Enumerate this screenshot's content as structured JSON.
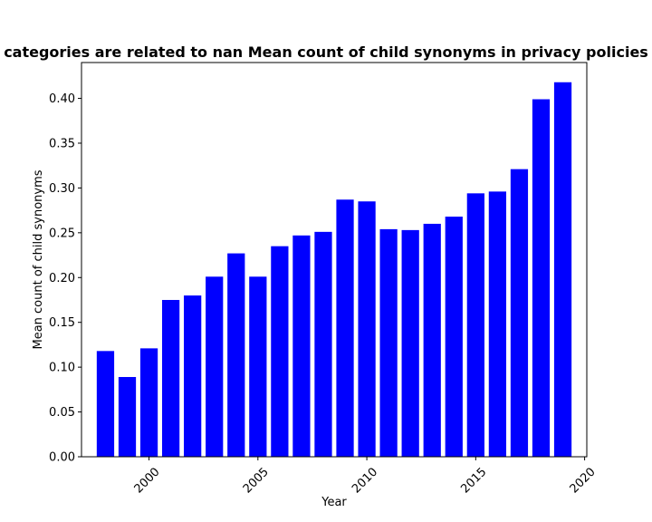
{
  "chart_data": {
    "type": "bar",
    "title": "categories are related to nan Mean count of child synonyms in privacy policies",
    "xlabel": "Year",
    "ylabel": "Mean count of child synonyms",
    "x": [
      1998,
      1999,
      2000,
      2001,
      2002,
      2003,
      2004,
      2005,
      2006,
      2007,
      2008,
      2009,
      2010,
      2011,
      2012,
      2013,
      2014,
      2015,
      2016,
      2017,
      2018,
      2019
    ],
    "values": [
      0.118,
      0.089,
      0.121,
      0.175,
      0.18,
      0.201,
      0.227,
      0.201,
      0.235,
      0.247,
      0.251,
      0.287,
      0.285,
      0.254,
      0.253,
      0.26,
      0.268,
      0.294,
      0.296,
      0.321,
      0.399,
      0.418
    ],
    "xlim": [
      1996.9,
      2020.1
    ],
    "ylim": [
      0,
      0.44
    ],
    "xticks": [
      2000,
      2005,
      2010,
      2015,
      2020
    ],
    "yticks": [
      0.0,
      0.05,
      0.1,
      0.15,
      0.2,
      0.25,
      0.3,
      0.35,
      0.4
    ],
    "xtick_rotation_deg": 45,
    "bar_color": "#0000ff",
    "grid": false,
    "legend": false
  }
}
